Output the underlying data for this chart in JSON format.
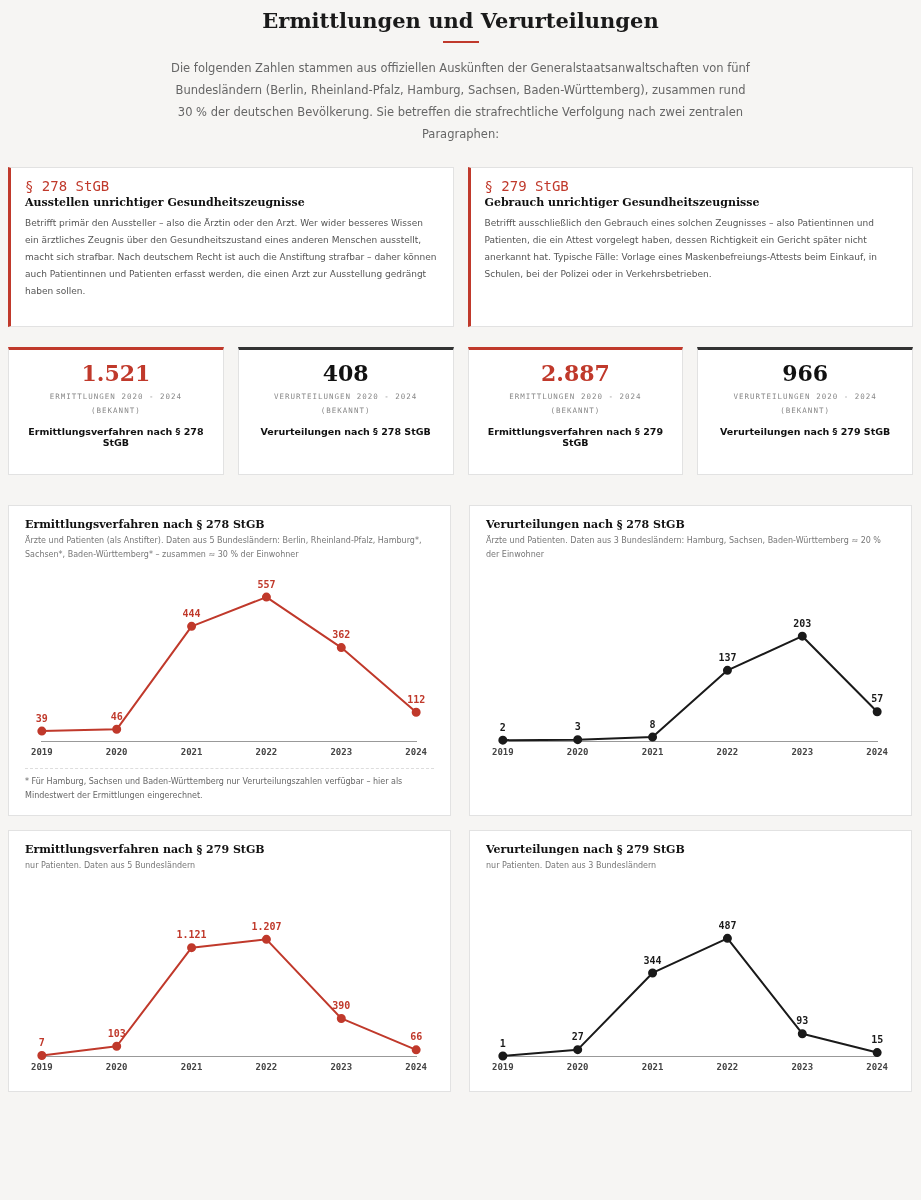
{
  "chart_data": [
    {
      "type": "other",
      "title": "Ermittlungen und Verurteilungen",
      "subtitle": "Die folgenden Zahlen stammen aus offiziellen Auskünften der Generalstaatsanwaltschaften von fünf Bundesländern (Berlin, Rheinland-Pfalz, Hamburg, Sachsen, Baden-Württemberg), zusammen rund 30 % der deutschen Bevölkerung. Sie betreffen die strafrechtliche Verfolgung nach zwei zentralen Paragraphen:",
      "annotations": [
        "§ 278 StGB",
        "Ausstellen unrichtiger Gesundheitszeugnisse",
        "Betrifft primär den Aussteller – also die Ärztin oder den Arzt. Wer wider besseres Wissen ein ärztliches Zeugnis über den Gesundheitszustand eines anderen Menschen ausstellt, macht sich strafbar. Nach deutschem Recht ist auch die Anstiftung strafbar – daher können auch Patientinnen und Patienten erfasst werden, die einen Arzt zur Ausstellung gedrängt haben sollen.",
        "§ 279 StGB",
        "Gebrauch unrichtiger Gesundheitszeugnisse",
        "Betrifft ausschließlich den Gebrauch eines solchen Zeugnisses – also Patientinnen und Patienten, die ein Attest vorgelegt haben, dessen Richtigkeit ein Gericht später nicht anerkannt hat. Typische Fälle: Vorlage eines Maskenbefreiungs-Attests beim Einkauf, in Schulen, bei der Polizei oder in Verkehrsbetrieben.",
        "1.521",
        "ERMITTLUNGEN 2020 - 2024 (BEKANNT)",
        "Ermittlungsverfahren nach § 278 StGB",
        "408",
        "VERURTEILUNGEN 2020 - 2024 (BEKANNT)",
        "Verurteilungen nach § 278 StGB",
        "2.887",
        "ERMITTLUNGEN 2020 - 2024 (BEKANNT)",
        "Ermittlungsverfahren nach § 279 StGB",
        "966",
        "VERURTEILUNGEN 2020 - 2024 (BEKANNT)",
        "Verurteilungen nach § 279 StGB"
      ]
    },
    {
      "type": "line",
      "title": "Ermittlungsverfahren nach § 278 StGB",
      "subtitle": "Ärzte und Patienten (als Anstifter). Daten aus 5 Bundesländern: Berlin, Rheinland-Pfalz, Hamburg*, Sachsen*, Baden-Württemberg* – zusammen ≈ 30 % der Einwohner",
      "categories": [
        "2019",
        "2020",
        "2021",
        "2022",
        "2023",
        "2024"
      ],
      "marker": "circle",
      "tick_labels": "x",
      "annotations": [
        "* Für Hamburg, Sachsen und Baden-Württemberg nur Verurteilungszahlen verfügbar – hier als Mindestwert der Ermittlungen eingerechnet."
      ],
      "series": [
        {
          "color": "#c0392b",
          "values": [
            39,
            46,
            444,
            557,
            362,
            112
          ],
          "value_labels": [
            "39",
            "46",
            "444",
            "557",
            "362",
            "112"
          ]
        }
      ]
    },
    {
      "type": "line",
      "title": "Verurteilungen nach § 278 StGB",
      "subtitle": "Ärzte und Patienten. Daten aus 3 Bundesländern: Hamburg, Sachsen, Baden-Württemberg ≈ 20 % der Einwohner",
      "categories": [
        "2019",
        "2020",
        "2021",
        "2022",
        "2023",
        "2024"
      ],
      "marker": "circle",
      "tick_labels": "x",
      "series": [
        {
          "color": "#1a1a1a",
          "values": [
            2,
            3,
            8,
            137,
            203,
            57
          ],
          "value_labels": [
            "2",
            "3",
            "8",
            "137",
            "203",
            "57"
          ]
        }
      ]
    },
    {
      "type": "line",
      "title": "Ermittlungsverfahren nach § 279 StGB",
      "subtitle": "nur Patienten. Daten aus 5 Bundesländern",
      "categories": [
        "2019",
        "2020",
        "2021",
        "2022",
        "2023",
        "2024"
      ],
      "marker": "circle",
      "tick_labels": "x",
      "series": [
        {
          "color": "#c0392b",
          "values": [
            7,
            103,
            1121,
            1207,
            390,
            66
          ],
          "value_labels": [
            "7",
            "103",
            "1.121",
            "1.207",
            "390",
            "66"
          ]
        }
      ]
    },
    {
      "type": "line",
      "title": "Verurteilungen nach § 279 StGB",
      "subtitle": "nur Patienten. Daten aus 3 Bundesländern",
      "categories": [
        "2019",
        "2020",
        "2021",
        "2022",
        "2023",
        "2024"
      ],
      "marker": "circle",
      "tick_labels": "x",
      "series": [
        {
          "color": "#1a1a1a",
          "values": [
            1,
            27,
            344,
            487,
            93,
            15
          ],
          "value_labels": [
            "1",
            "27",
            "344",
            "487",
            "93",
            "15"
          ]
        }
      ]
    }
  ]
}
